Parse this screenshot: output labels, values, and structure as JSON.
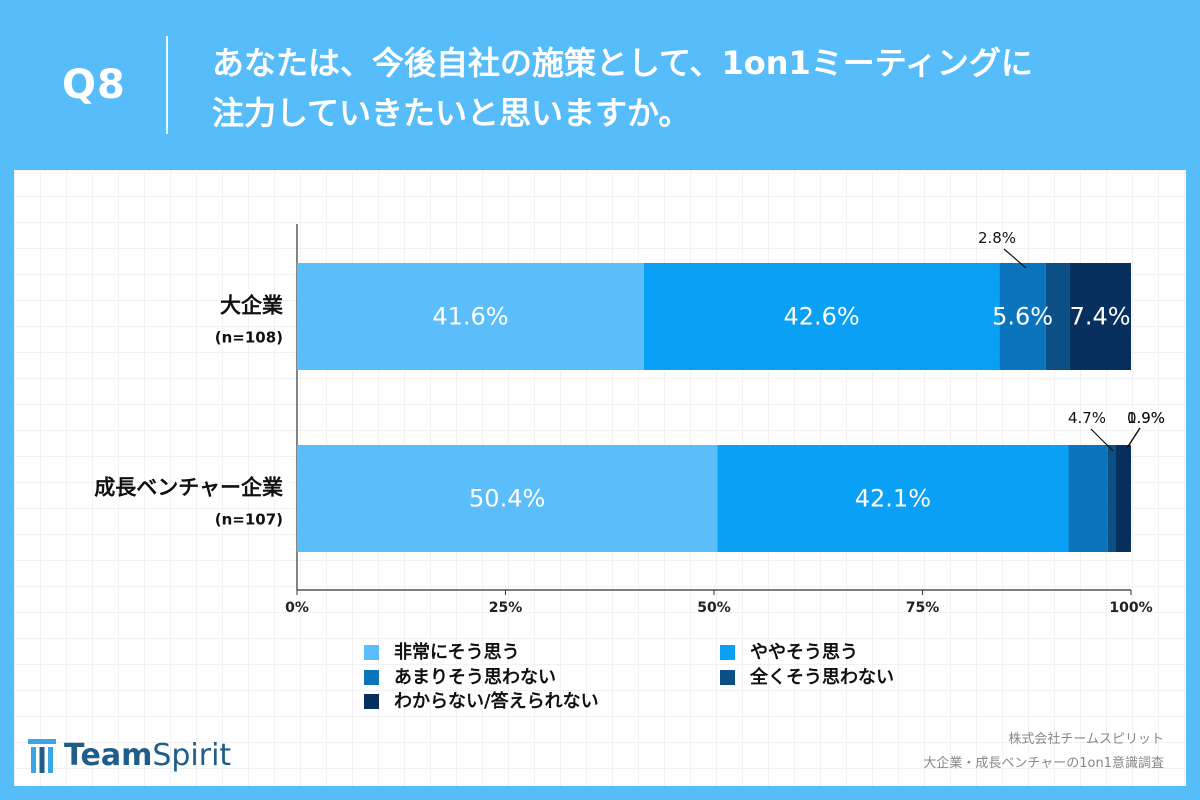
{
  "header": {
    "question_number": "Q8",
    "question_line1": "あなたは、今後自社の施策として、1on1ミーティングに",
    "question_line2": "注力していきたいと思いますか。"
  },
  "chart_data": {
    "type": "bar",
    "orientation": "horizontal",
    "stacked": true,
    "categories": [
      {
        "label": "大企業",
        "n": "(n=108)"
      },
      {
        "label": "成長ベンチャー企業",
        "n": "(n=107)"
      }
    ],
    "series": [
      {
        "name": "非常にそう思う",
        "color": "#5bbefa",
        "values": [
          41.6,
          50.4
        ],
        "labels": [
          "41.6%",
          "50.4%"
        ]
      },
      {
        "name": "ややそう思う",
        "color": "#0aa0f5",
        "values": [
          42.6,
          42.1
        ],
        "labels": [
          "42.6%",
          "42.1%"
        ]
      },
      {
        "name": "あまりそう思わない",
        "color": "#0a74bd",
        "values": [
          5.6,
          4.7
        ],
        "labels": [
          "5.6%",
          "4.7%"
        ]
      },
      {
        "name": "全くそう思わない",
        "color": "#0c4f85",
        "values": [
          2.8,
          0.9
        ],
        "labels": [
          "2.8%",
          "0.9%"
        ]
      },
      {
        "name": "わからない/答えられない",
        "color": "#07305e",
        "values": [
          7.4,
          1.9
        ],
        "labels": [
          "7.4%",
          "1.9%"
        ]
      }
    ],
    "xlim": [
      0,
      100
    ],
    "xticks": [
      "0%",
      "25%",
      "50%",
      "75%",
      "100%"
    ],
    "legend_position": "bottom"
  },
  "footer": {
    "logo_team": "Team",
    "logo_spirit": "Spirit",
    "credit_line1": "株式会社チームスピリット",
    "credit_line2": "大企業・成長ベンチャーの1on1意識調査"
  }
}
